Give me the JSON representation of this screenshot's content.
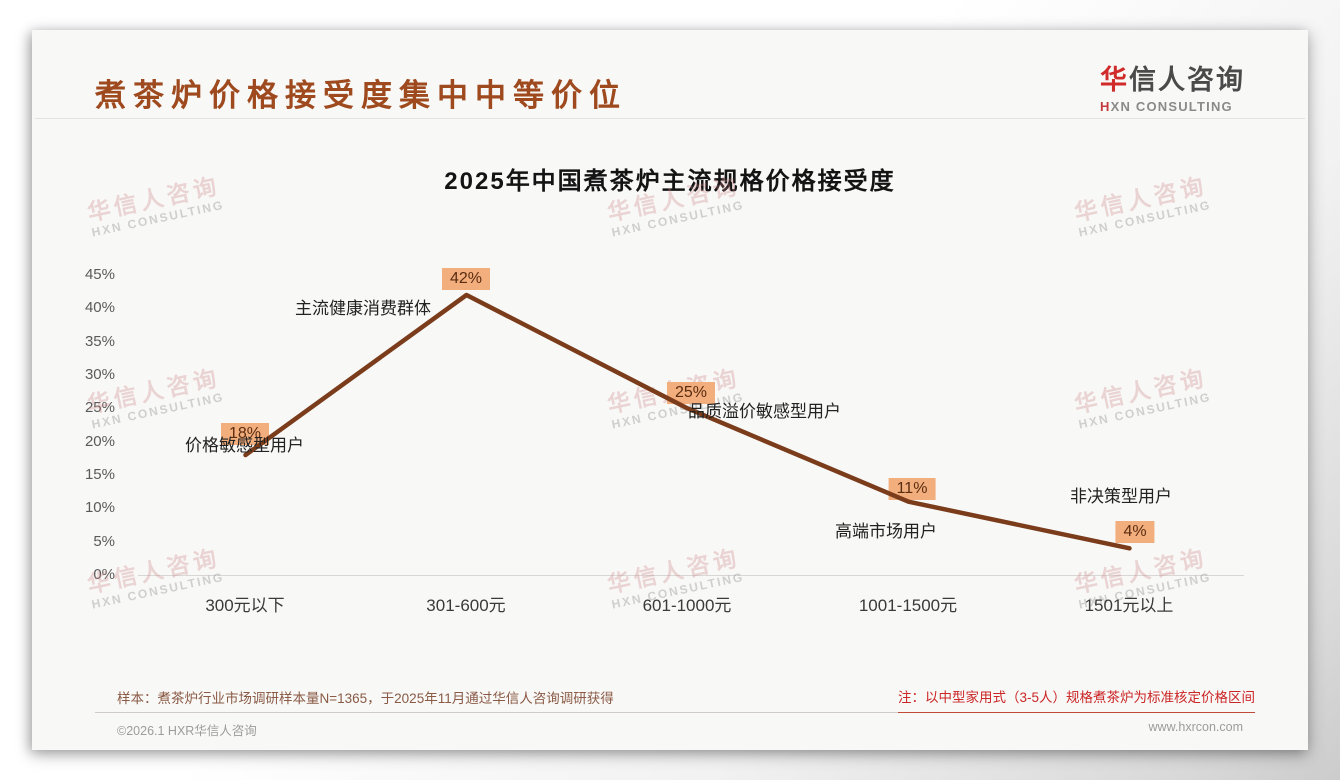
{
  "page": {
    "header": {
      "title": "煮茶炉价格接受度集中中等价位"
    },
    "logo": {
      "cn_first": "华",
      "cn_rest": "信人咨询",
      "en_first": "H",
      "en_rest": "XN CONSULTING"
    },
    "watermark": {
      "cn": "华信人咨询",
      "en": "HXN CONSULTING"
    },
    "footer": {
      "sample_note": "样本：煮茶炉行业市场调研样本量N=1365，于2025年11月通过华信人咨询调研获得",
      "spec_note": "注：以中型家用式（3-5人）规格煮茶炉为标准核定价格区间",
      "copyright": "©2026.1 HXR华信人咨询",
      "website": "www.hxrcon.com"
    }
  },
  "chart_data": {
    "type": "line",
    "title": "2025年中国煮茶炉主流规格价格接受度",
    "categories": [
      "300元以下",
      "301-600元",
      "601-1000元",
      "1001-1500元",
      "1501元以上"
    ],
    "values": [
      18,
      42,
      25,
      11,
      4
    ],
    "value_labels": [
      "18%",
      "42%",
      "25%",
      "11%",
      "4%"
    ],
    "annotations": [
      "价格敏感型用户",
      "主流健康消费群体",
      "品质溢价敏感型用户",
      "高端市场用户",
      "非决策型用户"
    ],
    "y_ticks": [
      "45%",
      "40%",
      "35%",
      "30%",
      "25%",
      "20%",
      "15%",
      "10%",
      "5%",
      "0%"
    ],
    "xlabel": "",
    "ylabel": "",
    "ylim": [
      0,
      45
    ],
    "grid": false,
    "legend": false,
    "line_color": "#7a3c1a",
    "badge_color": "#f2ae7d"
  },
  "colors": {
    "title_brown": "#9e4a1e",
    "logo_red": "#d02a2a",
    "note_red": "#cb2727",
    "card_bg": "#f8f8f7"
  }
}
